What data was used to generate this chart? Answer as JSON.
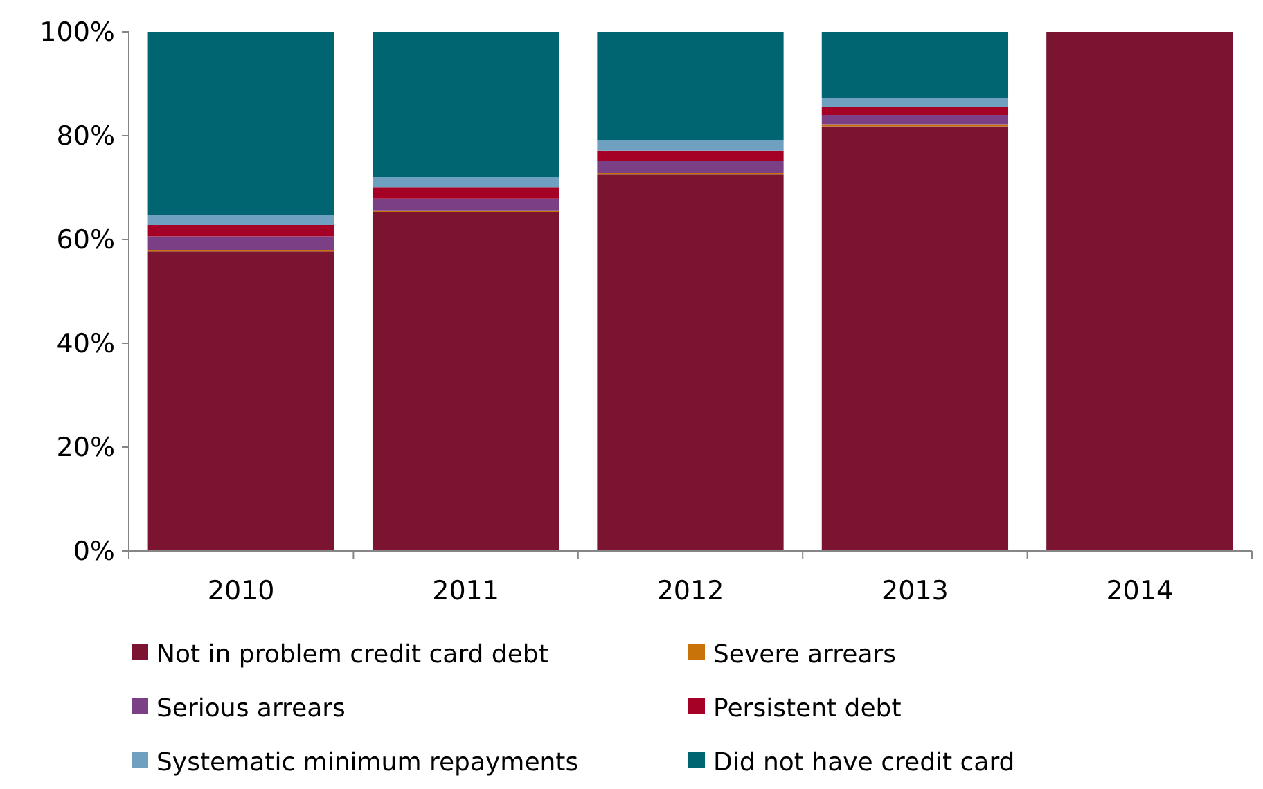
{
  "chart_data": {
    "type": "bar",
    "stacked": true,
    "categories": [
      "2010",
      "2011",
      "2012",
      "2013",
      "2014"
    ],
    "series": [
      {
        "name": "Not in problem credit card debt",
        "color": "#7b1430",
        "values": [
          57.7,
          65.2,
          72.5,
          81.8,
          100
        ]
      },
      {
        "name": "Severe arrears",
        "color": "#c8730a",
        "values": [
          0.3,
          0.3,
          0.3,
          0.4,
          0
        ]
      },
      {
        "name": "Serious arrears",
        "color": "#7b3f86",
        "values": [
          2.6,
          2.4,
          2.4,
          1.8,
          0
        ]
      },
      {
        "name": "Persistent debt",
        "color": "#a50026",
        "values": [
          2.2,
          2.2,
          1.9,
          1.6,
          0
        ]
      },
      {
        "name": "Systematic minimum repayments",
        "color": "#6fa0c0",
        "values": [
          1.9,
          1.9,
          2.1,
          1.7,
          0
        ]
      },
      {
        "name": "Did not have credit card",
        "color": "#006570",
        "values": [
          35.3,
          28.0,
          20.8,
          12.7,
          0
        ]
      }
    ],
    "ylim": [
      0,
      100
    ],
    "yticks": [
      {
        "value": 0,
        "label": "0%"
      },
      {
        "value": 20,
        "label": "20%"
      },
      {
        "value": 40,
        "label": "40%"
      },
      {
        "value": 60,
        "label": "60%"
      },
      {
        "value": 80,
        "label": "80%"
      },
      {
        "value": 100,
        "label": "100%"
      }
    ],
    "grid": false,
    "legend": "bottom"
  }
}
